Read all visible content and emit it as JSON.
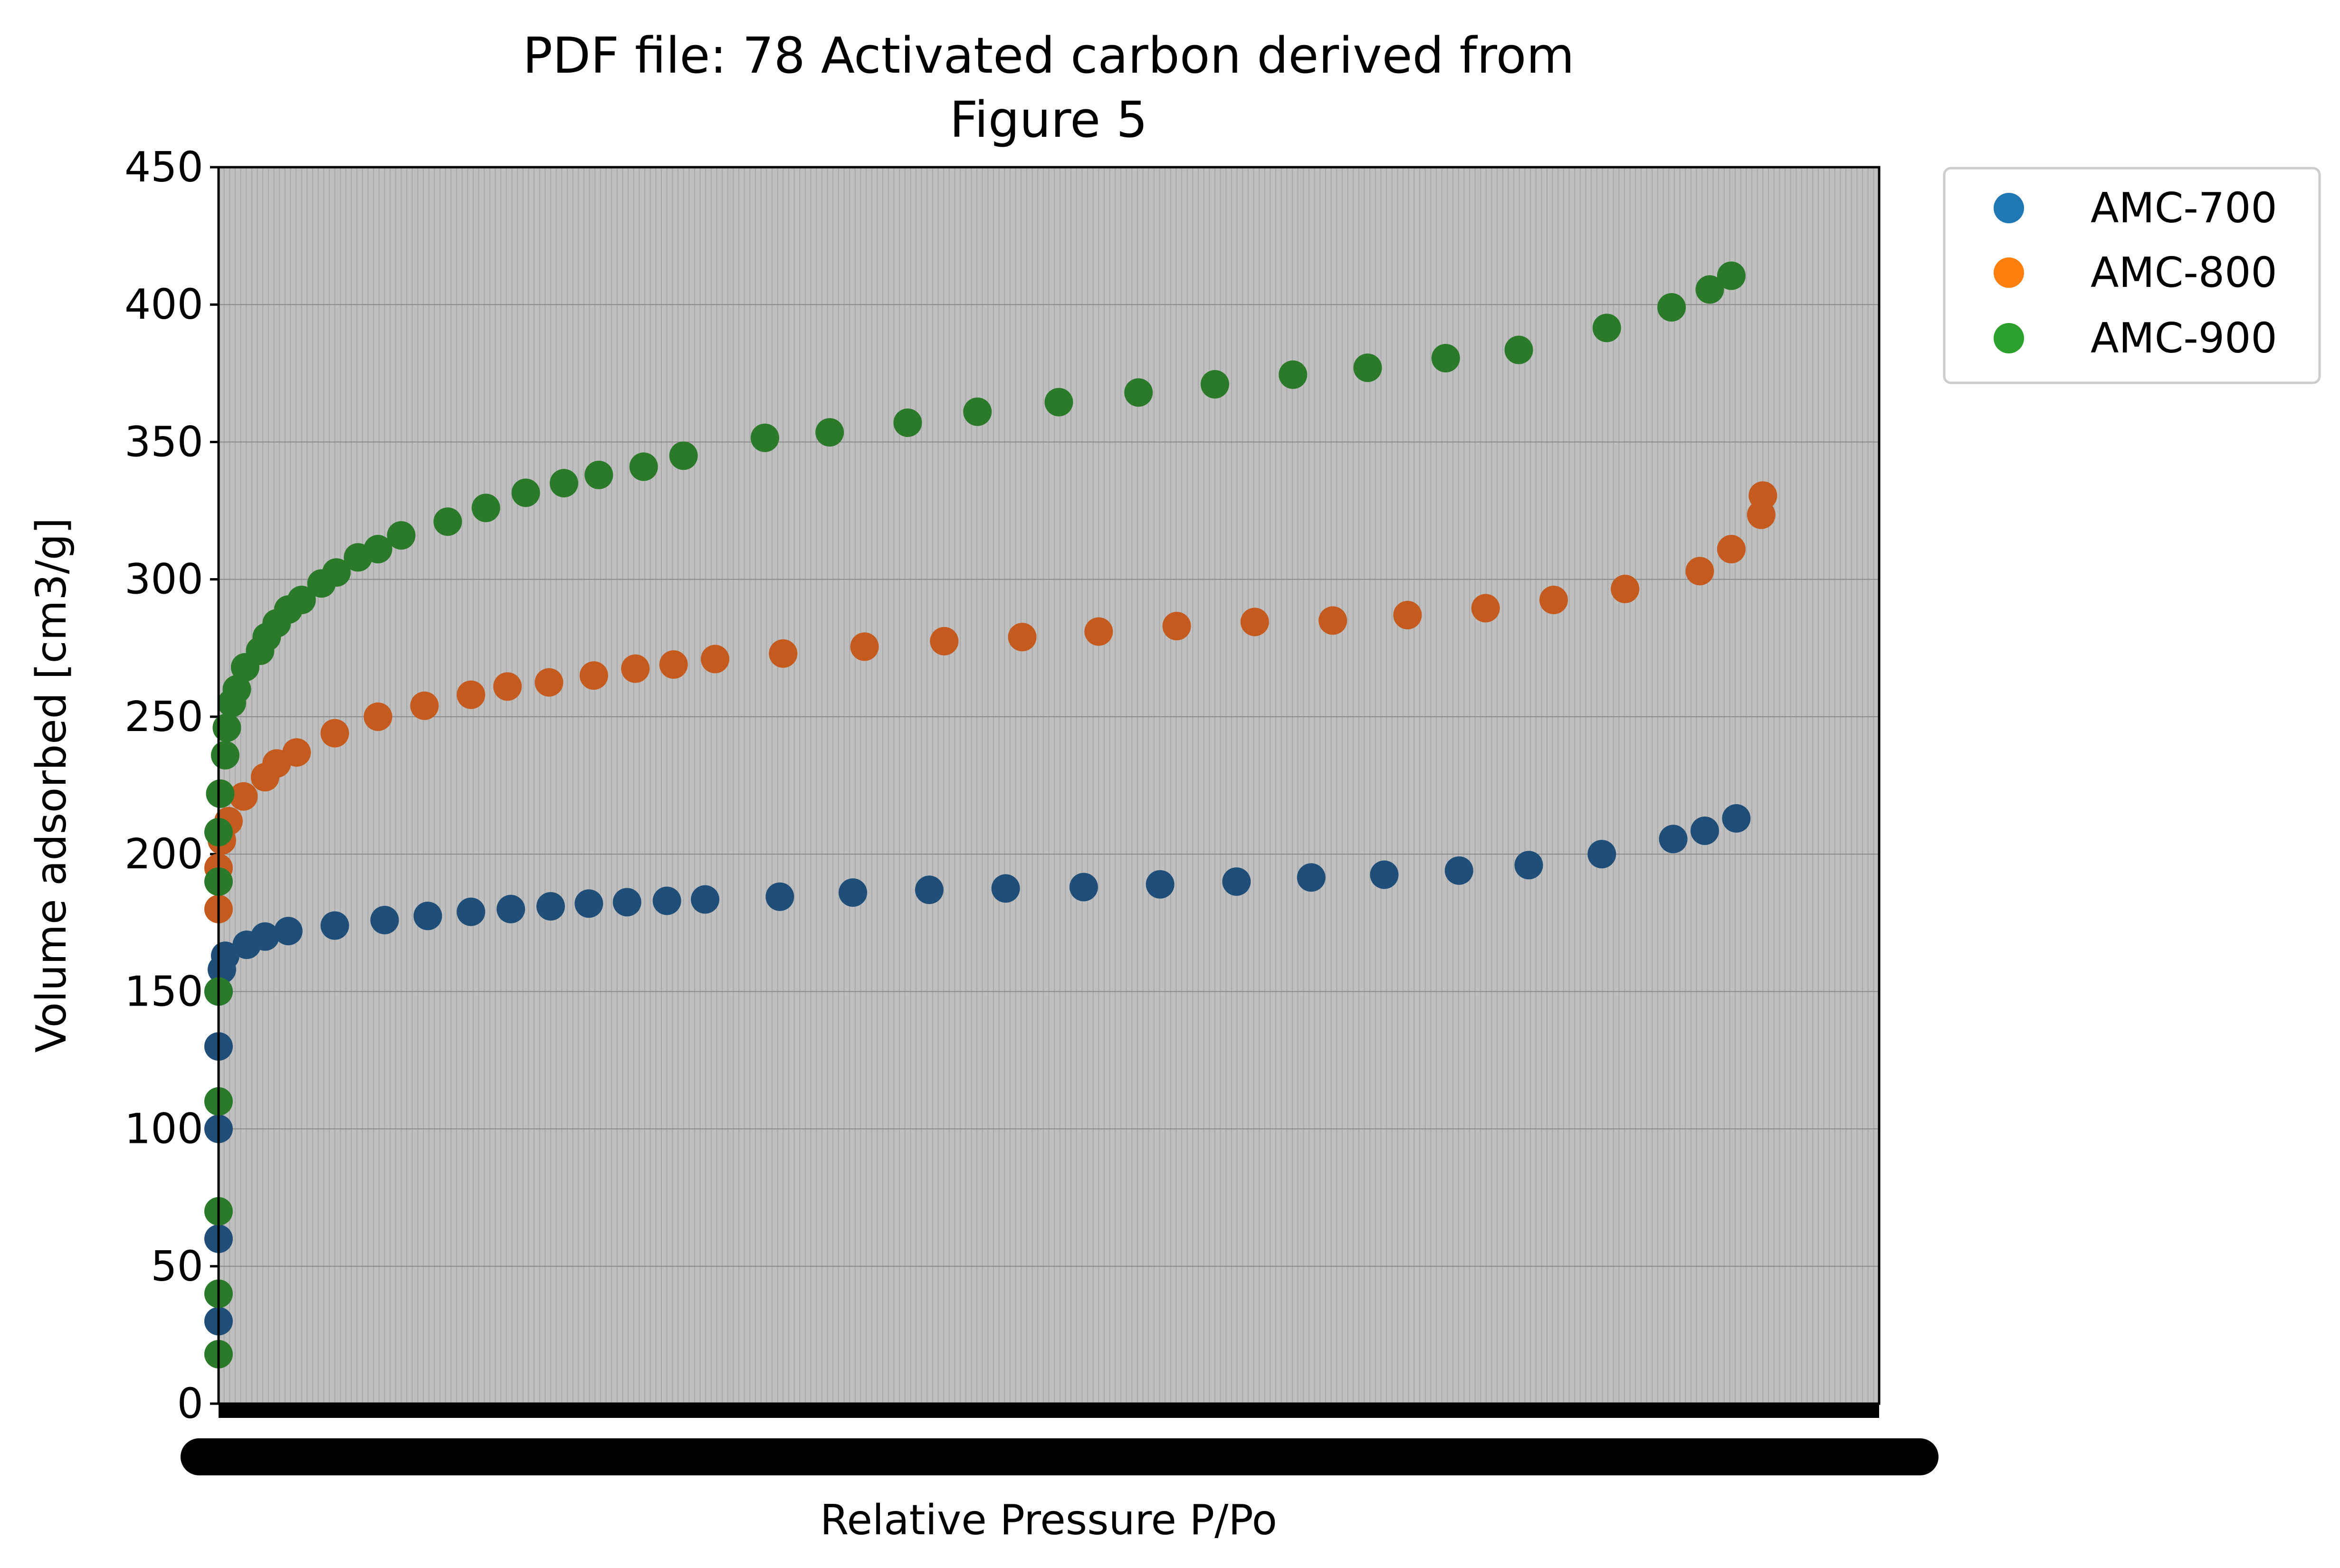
{
  "chart_data": {
    "type": "scatter",
    "title_lines": [
      "PDF file: 78 Activated carbon derived from",
      "Figure 5"
    ],
    "xlabel": "Relative Pressure P/Po",
    "ylabel": "Volume adsorbed [cm3/g]",
    "xlim": [
      0,
      1
    ],
    "ylim": [
      0,
      450
    ],
    "y_ticks": [
      0,
      50,
      100,
      150,
      200,
      250,
      300,
      350,
      400,
      450
    ],
    "x_tick_labels_legible": false,
    "grid": true,
    "plot_background": "#bfbfbf",
    "legend_position": "upper-right-outside",
    "series": [
      {
        "name": "AMC-700",
        "color": "#1f77b4",
        "display_color": "#1f4e79",
        "points": [
          [
            0.0,
            30
          ],
          [
            0.0,
            60
          ],
          [
            0.0,
            100
          ],
          [
            0.0,
            130
          ],
          [
            0.0,
            150
          ],
          [
            0.002,
            158
          ],
          [
            0.004,
            163
          ],
          [
            0.017,
            167
          ],
          [
            0.028,
            170
          ],
          [
            0.042,
            172
          ],
          [
            0.07,
            174
          ],
          [
            0.1,
            176
          ],
          [
            0.126,
            177.5
          ],
          [
            0.152,
            179
          ],
          [
            0.176,
            180
          ],
          [
            0.2,
            181
          ],
          [
            0.223,
            182
          ],
          [
            0.246,
            182.5
          ],
          [
            0.27,
            183
          ],
          [
            0.293,
            183.5
          ],
          [
            0.338,
            184.5
          ],
          [
            0.382,
            186
          ],
          [
            0.428,
            187
          ],
          [
            0.474,
            187.5
          ],
          [
            0.521,
            188
          ],
          [
            0.567,
            189
          ],
          [
            0.613,
            190
          ],
          [
            0.658,
            191.5
          ],
          [
            0.702,
            192.5
          ],
          [
            0.747,
            194
          ],
          [
            0.789,
            196
          ],
          [
            0.833,
            200
          ],
          [
            0.876,
            205.5
          ],
          [
            0.895,
            208.5
          ],
          [
            0.914,
            213
          ]
        ]
      },
      {
        "name": "AMC-800",
        "color": "#ff7f0e",
        "display_color": "#c45a1e",
        "points": [
          [
            0.0,
            180
          ],
          [
            0.0,
            195
          ],
          [
            0.002,
            205
          ],
          [
            0.006,
            212
          ],
          [
            0.015,
            221
          ],
          [
            0.028,
            228
          ],
          [
            0.035,
            233
          ],
          [
            0.047,
            237
          ],
          [
            0.07,
            244
          ],
          [
            0.096,
            250
          ],
          [
            0.124,
            254
          ],
          [
            0.152,
            258
          ],
          [
            0.174,
            261
          ],
          [
            0.199,
            262.5
          ],
          [
            0.226,
            265
          ],
          [
            0.251,
            267.5
          ],
          [
            0.274,
            269
          ],
          [
            0.299,
            271
          ],
          [
            0.34,
            273
          ],
          [
            0.389,
            275.5
          ],
          [
            0.437,
            277.5
          ],
          [
            0.484,
            279
          ],
          [
            0.53,
            281
          ],
          [
            0.577,
            283
          ],
          [
            0.624,
            284.5
          ],
          [
            0.671,
            285
          ],
          [
            0.716,
            287
          ],
          [
            0.763,
            289.5
          ],
          [
            0.804,
            292.5
          ],
          [
            0.847,
            296.5
          ],
          [
            0.892,
            303
          ],
          [
            0.911,
            311
          ],
          [
            0.929,
            323.5
          ],
          [
            0.93,
            330.5
          ]
        ]
      },
      {
        "name": "AMC-900",
        "color": "#2ca02c",
        "display_color": "#2a7a2a",
        "points": [
          [
            0.0,
            18
          ],
          [
            0.0,
            40
          ],
          [
            0.0,
            70
          ],
          [
            0.0,
            110
          ],
          [
            0.0,
            150
          ],
          [
            0.0,
            190
          ],
          [
            0.0,
            208
          ],
          [
            0.001,
            222
          ],
          [
            0.004,
            236
          ],
          [
            0.005,
            246
          ],
          [
            0.008,
            255
          ],
          [
            0.011,
            260
          ],
          [
            0.016,
            268
          ],
          [
            0.025,
            274
          ],
          [
            0.029,
            279
          ],
          [
            0.035,
            284
          ],
          [
            0.042,
            289
          ],
          [
            0.05,
            292.5
          ],
          [
            0.062,
            298.5
          ],
          [
            0.071,
            302.5
          ],
          [
            0.084,
            308
          ],
          [
            0.096,
            311
          ],
          [
            0.11,
            316
          ],
          [
            0.138,
            321
          ],
          [
            0.161,
            326
          ],
          [
            0.185,
            331.5
          ],
          [
            0.208,
            335
          ],
          [
            0.229,
            338
          ],
          [
            0.256,
            341
          ],
          [
            0.28,
            345
          ],
          [
            0.329,
            351.5
          ],
          [
            0.368,
            353.5
          ],
          [
            0.415,
            357
          ],
          [
            0.457,
            361
          ],
          [
            0.506,
            364.5
          ],
          [
            0.554,
            368
          ],
          [
            0.6,
            371
          ],
          [
            0.647,
            374.5
          ],
          [
            0.692,
            377
          ],
          [
            0.739,
            380.5
          ],
          [
            0.783,
            383.5
          ],
          [
            0.836,
            391.5
          ],
          [
            0.875,
            399
          ],
          [
            0.898,
            405.5
          ],
          [
            0.911,
            410.5
          ]
        ]
      }
    ]
  }
}
